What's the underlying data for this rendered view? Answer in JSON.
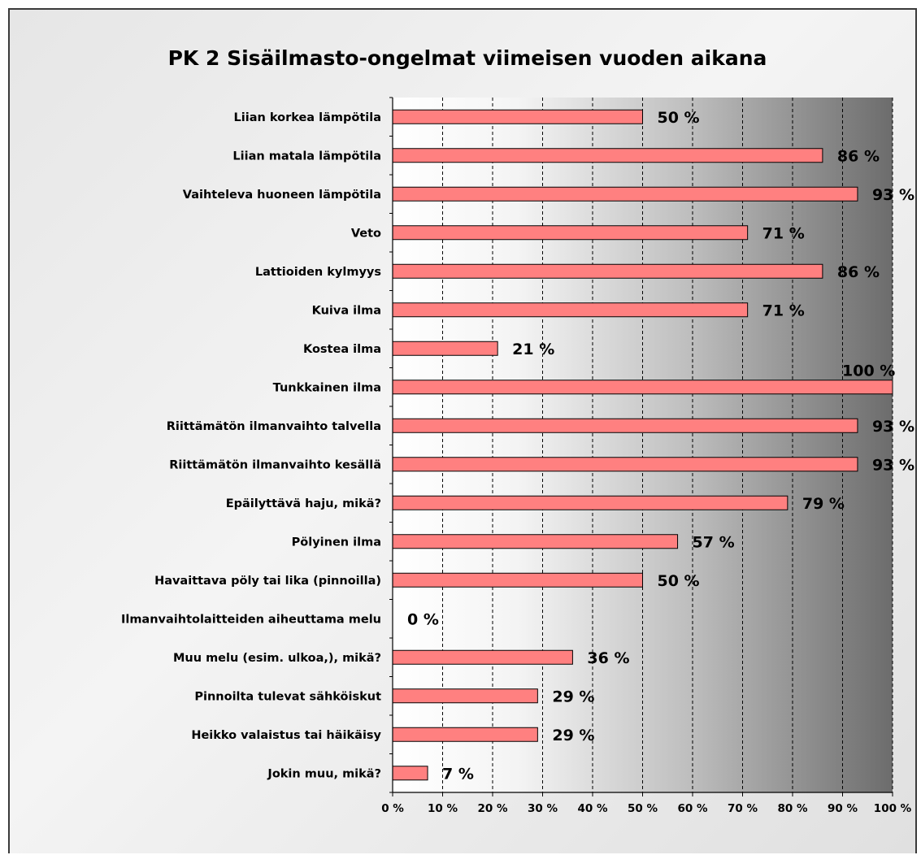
{
  "chart_data": {
    "type": "bar",
    "orientation": "horizontal",
    "title": "PK 2 Sisäilmasto-ongelmat viimeisen vuoden aikana",
    "categories": [
      "Liian korkea lämpötila",
      "Liian matala lämpötila",
      "Vaihteleva huoneen lämpötila",
      "Veto",
      "Lattioiden kylmyys",
      "Kuiva ilma",
      "Kostea ilma",
      "Tunkkainen ilma",
      "Riittämätön ilmanvaihto talvella",
      "Riittämätön ilmanvaihto kesällä",
      "Epäilyttävä haju, mikä?",
      "Pölyinen ilma",
      "Havaittava pöly tai lika (pinnoilla)",
      "Ilmanvaihtolaitteiden aiheuttama melu",
      "Muu melu (esim. ulkoa,), mikä?",
      "Pinnoilta tulevat sähköiskut",
      "Heikko valaistus tai häikäisy",
      "Jokin muu, mikä?"
    ],
    "values": [
      50,
      86,
      93,
      71,
      86,
      71,
      21,
      100,
      93,
      93,
      79,
      57,
      50,
      0,
      36,
      29,
      29,
      7
    ],
    "data_labels": [
      "50 %",
      "86 %",
      "93 %",
      "71 %",
      "86 %",
      "71 %",
      "21 %",
      "100 %",
      "93 %",
      "93 %",
      "79 %",
      "57 %",
      "50 %",
      "0 %",
      "36 %",
      "29 %",
      "29 %",
      "7 %"
    ],
    "xlim": [
      0,
      100
    ],
    "x_ticks": [
      "0 %",
      "10 %",
      "20 %",
      "30 %",
      "40 %",
      "50 %",
      "60 %",
      "70 %",
      "80 %",
      "90 %",
      "100 %"
    ],
    "grid": "vertical dashed",
    "legend": "none",
    "colors": {
      "bar": "#ff8080",
      "bar_border": "#000000"
    }
  }
}
